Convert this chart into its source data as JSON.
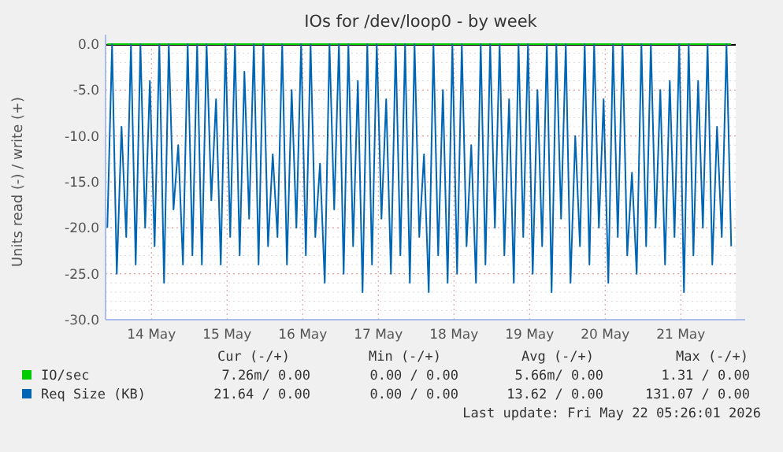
{
  "chart_data": {
    "type": "line",
    "title": "IOs for /dev/loop0 - by week",
    "ylabel": "Units read (-) / write (+)",
    "x": [
      "2026-05-13T22:00",
      "2026-05-13T23:30",
      "2026-05-14T01:00",
      "2026-05-14T02:30",
      "2026-05-14T04:00",
      "2026-05-14T05:30",
      "2026-05-14T07:00",
      "2026-05-14T08:30",
      "2026-05-14T10:00",
      "2026-05-14T11:30",
      "2026-05-14T13:00",
      "2026-05-14T14:30",
      "2026-05-14T16:00",
      "2026-05-14T17:30",
      "2026-05-14T19:00",
      "2026-05-14T20:30",
      "2026-05-14T22:00",
      "2026-05-14T23:30",
      "2026-05-15T01:00",
      "2026-05-15T02:30",
      "2026-05-15T04:00",
      "2026-05-15T05:30",
      "2026-05-15T07:00",
      "2026-05-15T08:30",
      "2026-05-15T10:00",
      "2026-05-15T11:30",
      "2026-05-15T13:00",
      "2026-05-15T14:30",
      "2026-05-15T16:00",
      "2026-05-15T17:30",
      "2026-05-15T19:00",
      "2026-05-15T20:30",
      "2026-05-15T22:00",
      "2026-05-15T23:30",
      "2026-05-16T01:00",
      "2026-05-16T02:30",
      "2026-05-16T04:00",
      "2026-05-16T05:30",
      "2026-05-16T07:00",
      "2026-05-16T08:30",
      "2026-05-16T10:00",
      "2026-05-16T11:30",
      "2026-05-16T13:00",
      "2026-05-16T14:30",
      "2026-05-16T16:00",
      "2026-05-16T17:30",
      "2026-05-16T19:00",
      "2026-05-16T20:30",
      "2026-05-16T22:00",
      "2026-05-16T23:30",
      "2026-05-17T01:00",
      "2026-05-17T02:30",
      "2026-05-17T04:00",
      "2026-05-17T05:30",
      "2026-05-17T07:00",
      "2026-05-17T08:30",
      "2026-05-17T10:00",
      "2026-05-17T11:30",
      "2026-05-17T13:00",
      "2026-05-17T14:30",
      "2026-05-17T16:00",
      "2026-05-17T17:30",
      "2026-05-17T19:00",
      "2026-05-17T20:30",
      "2026-05-17T22:00",
      "2026-05-17T23:30",
      "2026-05-18T01:00",
      "2026-05-18T02:30",
      "2026-05-18T04:00",
      "2026-05-18T05:30",
      "2026-05-18T07:00",
      "2026-05-18T08:30",
      "2026-05-18T10:00",
      "2026-05-18T11:30",
      "2026-05-18T13:00",
      "2026-05-18T14:30",
      "2026-05-18T16:00",
      "2026-05-18T17:30",
      "2026-05-18T19:00",
      "2026-05-18T20:30",
      "2026-05-18T22:00",
      "2026-05-18T23:30",
      "2026-05-19T01:00",
      "2026-05-19T02:30",
      "2026-05-19T04:00",
      "2026-05-19T05:30",
      "2026-05-19T07:00",
      "2026-05-19T08:30",
      "2026-05-19T10:00",
      "2026-05-19T11:30",
      "2026-05-19T13:00",
      "2026-05-19T14:30",
      "2026-05-19T16:00",
      "2026-05-19T17:30",
      "2026-05-19T19:00",
      "2026-05-19T20:30",
      "2026-05-19T22:00",
      "2026-05-19T23:30",
      "2026-05-20T01:00",
      "2026-05-20T02:30",
      "2026-05-20T04:00",
      "2026-05-20T05:30",
      "2026-05-20T07:00",
      "2026-05-20T08:30",
      "2026-05-20T10:00",
      "2026-05-20T11:30",
      "2026-05-20T13:00",
      "2026-05-20T14:30",
      "2026-05-20T16:00",
      "2026-05-20T17:30",
      "2026-05-20T19:00",
      "2026-05-20T20:30",
      "2026-05-20T22:00",
      "2026-05-20T23:30",
      "2026-05-21T01:00",
      "2026-05-21T02:30",
      "2026-05-21T04:00",
      "2026-05-21T05:30",
      "2026-05-21T07:00",
      "2026-05-21T08:30",
      "2026-05-21T10:00",
      "2026-05-21T11:30",
      "2026-05-21T13:00",
      "2026-05-21T14:30",
      "2026-05-21T16:00",
      "2026-05-21T17:30",
      "2026-05-21T19:00",
      "2026-05-21T20:30",
      "2026-05-21T22:00",
      "2026-05-21T23:30",
      "2026-05-22T01:00",
      "2026-05-22T02:30",
      "2026-05-22T04:00"
    ],
    "series": [
      {
        "name": "IO/sec",
        "color": "#00cc00",
        "x": [
          "2026-05-13T22:00",
          "2026-05-22T04:00"
        ],
        "values": [
          0,
          0
        ]
      },
      {
        "name": "Req Size (KB)",
        "color": "#0066b3",
        "values": [
          -20,
          0,
          -25,
          -9,
          -21,
          0,
          -24,
          0,
          -20,
          -4,
          -22,
          0,
          -26,
          0,
          -18,
          -11,
          -24,
          0,
          -23,
          0,
          -24,
          0,
          -17,
          -6,
          -24,
          0,
          -21,
          0,
          -23,
          -3,
          -19,
          0,
          -24,
          0,
          -22,
          -12,
          -21,
          0,
          -24,
          -5,
          -20,
          0,
          -23,
          0,
          -21,
          -13,
          -26,
          0,
          -18,
          0,
          -25,
          0,
          -22,
          -4,
          -27,
          0,
          -24,
          0,
          -19,
          -6,
          -25,
          0,
          -23,
          0,
          -26,
          0,
          -21,
          -12,
          -27,
          0,
          -23,
          -5,
          -26,
          0,
          -25,
          0,
          -22,
          -11,
          -26,
          0,
          -24,
          0,
          -20,
          0,
          -23,
          -6,
          -26,
          0,
          -21,
          0,
          -25,
          -5,
          -22,
          0,
          -27,
          0,
          -19,
          0,
          -26,
          -10,
          -22,
          0,
          -24,
          0,
          -20,
          -6,
          -26,
          0,
          -21,
          0,
          -23,
          -14,
          -25,
          0,
          -22,
          0,
          -20,
          -5,
          -24,
          -4,
          -21,
          0,
          -27,
          0,
          -23,
          -4,
          -20,
          0,
          -24,
          -9,
          -21,
          0,
          -22
        ]
      }
    ],
    "xlim": [
      "2026-05-13T21:26",
      "2026-05-22T05:26"
    ],
    "xticks": [
      {
        "value": "2026-05-14T12:00",
        "label": "14 May"
      },
      {
        "value": "2026-05-15T12:00",
        "label": "15 May"
      },
      {
        "value": "2026-05-16T12:00",
        "label": "16 May"
      },
      {
        "value": "2026-05-17T12:00",
        "label": "17 May"
      },
      {
        "value": "2026-05-18T12:00",
        "label": "18 May"
      },
      {
        "value": "2026-05-19T12:00",
        "label": "19 May"
      },
      {
        "value": "2026-05-20T12:00",
        "label": "20 May"
      },
      {
        "value": "2026-05-21T12:00",
        "label": "21 May"
      }
    ],
    "ylim": [
      -30,
      0
    ],
    "yticks": [
      {
        "value": -30,
        "label": "-30.0"
      },
      {
        "value": -25,
        "label": "-25.0"
      },
      {
        "value": -20,
        "label": "-20.0"
      },
      {
        "value": -15,
        "label": "-15.0"
      },
      {
        "value": -10,
        "label": "-10.0"
      },
      {
        "value": -5,
        "label": "-5.0"
      },
      {
        "value": 0,
        "label": "0.0"
      }
    ],
    "grid": true,
    "legend": "bottom",
    "ref_lines": [
      {
        "axis": "y",
        "value": 0,
        "color": "#000000"
      }
    ],
    "annotations": [
      "Cur (-/+)",
      "Min (-/+)",
      "Avg (-/+)",
      "Max (-/+)",
      "7.26m/ 0.00",
      "0.00 / 0.00",
      "5.66m/ 0.00",
      "1.31 / 0.00",
      "21.64 / 0.00",
      "0.00 / 0.00",
      "13.62 / 0.00",
      "131.07 / 0.00",
      "Last update: Fri May 22 05:26:01 2026"
    ]
  }
}
